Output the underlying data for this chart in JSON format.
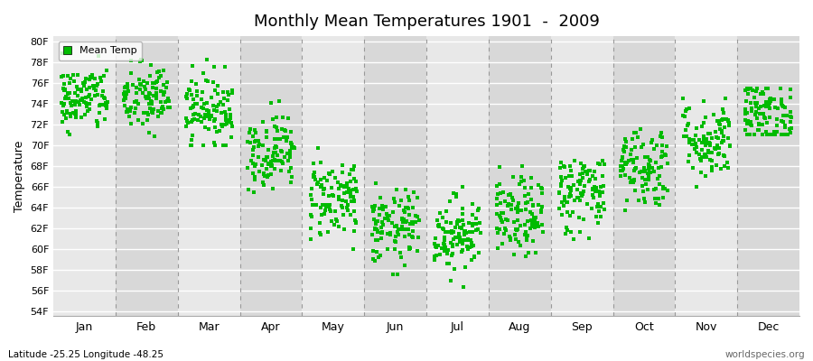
{
  "title": "Monthly Mean Temperatures 1901  -  2009",
  "ylabel": "Temperature",
  "xlabel_months": [
    "Jan",
    "Feb",
    "Mar",
    "Apr",
    "May",
    "Jun",
    "Jul",
    "Aug",
    "Sep",
    "Oct",
    "Nov",
    "Dec"
  ],
  "ytick_labels": [
    "54F",
    "56F",
    "58F",
    "60F",
    "62F",
    "64F",
    "66F",
    "68F",
    "70F",
    "72F",
    "74F",
    "76F",
    "78F",
    "80F"
  ],
  "ytick_values": [
    54,
    56,
    58,
    60,
    62,
    64,
    66,
    68,
    70,
    72,
    74,
    76,
    78,
    80
  ],
  "ylim": [
    53.5,
    80.5
  ],
  "dot_color": "#00BB00",
  "dot_size": 6,
  "background_color": "#FFFFFF",
  "band_color_dark": "#D8D8D8",
  "band_color_light": "#E8E8E8",
  "grid_color": "#FFFFFF",
  "dashed_line_color": "#999999",
  "footer_left": "Latitude -25.25 Longitude -48.25",
  "footer_right": "worldspecies.org",
  "legend_label": "Mean Temp",
  "n_years": 109,
  "monthly_means": [
    74.5,
    74.5,
    73.5,
    69.5,
    65.0,
    62.0,
    61.5,
    63.0,
    65.5,
    68.0,
    70.5,
    73.0
  ],
  "monthly_stds": [
    1.6,
    1.7,
    1.7,
    1.8,
    2.0,
    1.8,
    1.8,
    1.9,
    2.0,
    2.0,
    1.9,
    1.6
  ],
  "monthly_mins": [
    71.0,
    70.5,
    70.0,
    65.5,
    60.0,
    57.5,
    55.5,
    58.5,
    60.0,
    63.0,
    66.0,
    71.0
  ],
  "monthly_maxs": [
    79.0,
    79.5,
    78.5,
    75.0,
    70.5,
    67.5,
    68.5,
    68.5,
    68.5,
    73.0,
    74.5,
    75.5
  ]
}
